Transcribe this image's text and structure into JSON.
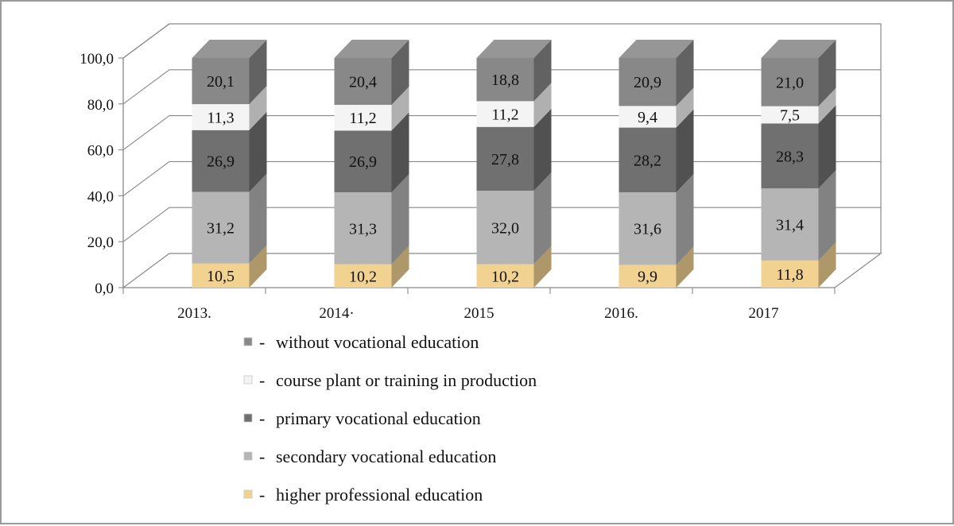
{
  "chart_data": {
    "type": "bar",
    "stacked": true,
    "three_d": true,
    "title": "",
    "xlabel": "",
    "ylabel": "",
    "ylim": [
      0,
      100
    ],
    "yticks": [
      "0,0",
      "20,0",
      "40,0",
      "60,0",
      "80,0",
      "100,0"
    ],
    "grid": true,
    "legend_position": "bottom",
    "categories": [
      "2013.",
      "2014·",
      "2015",
      "2016.",
      "2017"
    ],
    "series": [
      {
        "name": "higher professional education",
        "values": [
          10.5,
          10.2,
          10.2,
          9.9,
          11.8
        ],
        "labels": [
          "10,5",
          "10,2",
          "10,2",
          "9,9",
          "11,8"
        ],
        "color": "#f1d291"
      },
      {
        "name": "secondary vocational education",
        "values": [
          31.2,
          31.3,
          32.0,
          31.6,
          31.4
        ],
        "labels": [
          "31,2",
          "31,3",
          "32,0",
          "31,6",
          "31,4"
        ],
        "color": "#b5b5b5"
      },
      {
        "name": "primary vocational education",
        "values": [
          26.9,
          26.9,
          27.8,
          28.2,
          28.3
        ],
        "labels": [
          "26,9",
          "26,9",
          "27,8",
          "28,2",
          "28,3"
        ],
        "color": "#707070"
      },
      {
        "name": "course plant or training in production",
        "values": [
          11.3,
          11.2,
          11.2,
          9.4,
          7.5
        ],
        "labels": [
          "11,3",
          "11,2",
          "11,2",
          "9,4",
          "7,5"
        ],
        "color": "#f4f4f4"
      },
      {
        "name": "without vocational education",
        "values": [
          20.1,
          20.4,
          18.8,
          20.9,
          21.0
        ],
        "labels": [
          "20,1",
          "20,4",
          "18,8",
          "20,9",
          "21,0"
        ],
        "color": "#888888"
      }
    ],
    "legend": [
      {
        "label": "without vocational education",
        "marker": "-"
      },
      {
        "label": "course plant or training in production",
        "marker": "-"
      },
      {
        "label": "primary vocational education",
        "marker": "-"
      },
      {
        "label": "secondary vocational education",
        "marker": "-"
      },
      {
        "label": "higher professional education",
        "marker": "-"
      }
    ]
  }
}
